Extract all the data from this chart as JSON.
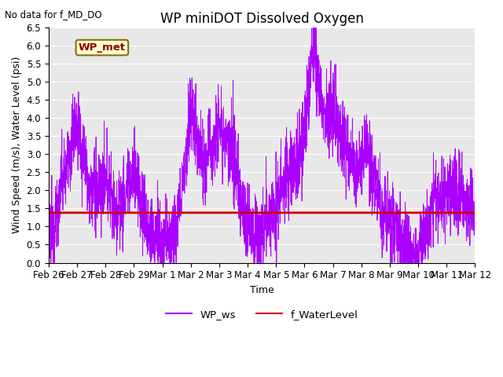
{
  "title": "WP miniDOT Dissolved Oxygen",
  "top_left_text": "No data for f_MD_DO",
  "ylabel": "Wind Speed (m/s), Water Level (psi)",
  "xlabel": "Time",
  "ylim": [
    0.0,
    6.5
  ],
  "yticks": [
    0.0,
    0.5,
    1.0,
    1.5,
    2.0,
    2.5,
    3.0,
    3.5,
    4.0,
    4.5,
    5.0,
    5.5,
    6.0,
    6.5
  ],
  "water_level": 1.38,
  "ws_color": "#AA00FF",
  "wl_color": "#CC0000",
  "legend_box_label": "WP_met",
  "legend_box_facecolor": "#FFFFCC",
  "legend_box_edgecolor": "#8B6914",
  "plot_bg_color": "#E8E8E8",
  "grid_color": "white",
  "n_points": 3000,
  "legend_entries": [
    "WP_ws",
    "f_WaterLevel"
  ],
  "legend_colors": [
    "#AA00FF",
    "#CC0000"
  ],
  "title_fontsize": 12,
  "label_fontsize": 9,
  "tick_fontsize": 8.5
}
